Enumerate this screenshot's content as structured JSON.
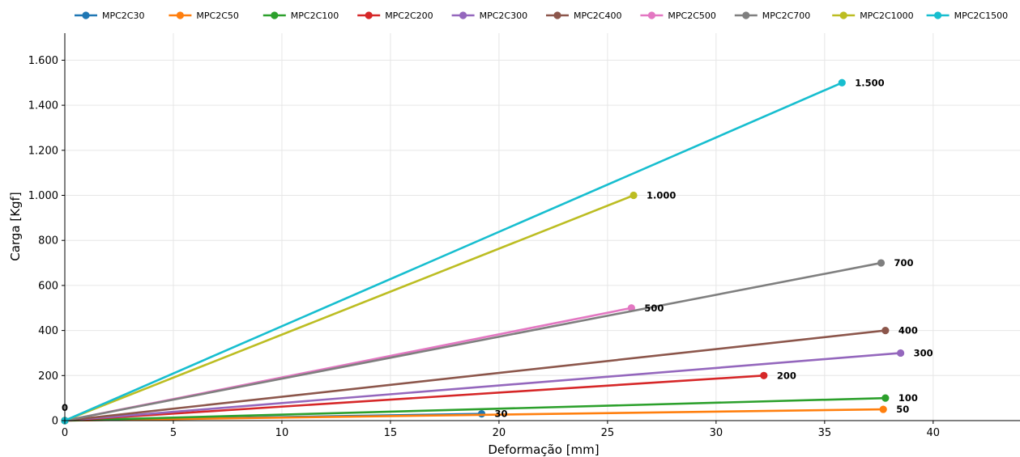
{
  "chart_data": {
    "type": "line",
    "xlabel": "Deformação [mm]",
    "ylabel": "Carga [Kgf]",
    "xlim": [
      0,
      44
    ],
    "ylim": [
      0,
      1720
    ],
    "xticks": [
      0,
      5,
      10,
      15,
      20,
      25,
      30,
      35,
      40
    ],
    "yticks": [
      0,
      200,
      400,
      600,
      800,
      1000,
      1200,
      1400,
      1600
    ],
    "ytick_labels": [
      "0",
      "200",
      "400",
      "600",
      "800",
      "1.000",
      "1.200",
      "1.400",
      "1.600"
    ],
    "grid": true,
    "legend_placement": "top",
    "origin_label": "0",
    "series": [
      {
        "name": "MPC2C30",
        "color": "#1f77b4",
        "x": [
          0,
          19.2
        ],
        "y": [
          0,
          30
        ],
        "end_label": "30"
      },
      {
        "name": "MPC2C50",
        "color": "#ff7f0e",
        "x": [
          0,
          37.7
        ],
        "y": [
          0,
          50
        ],
        "end_label": "50"
      },
      {
        "name": "MPC2C100",
        "color": "#2ca02c",
        "x": [
          0,
          37.8
        ],
        "y": [
          0,
          100
        ],
        "end_label": "100"
      },
      {
        "name": "MPC2C200",
        "color": "#d62728",
        "x": [
          0,
          32.2
        ],
        "y": [
          0,
          200
        ],
        "end_label": "200"
      },
      {
        "name": "MPC2C300",
        "color": "#9467bd",
        "x": [
          0,
          38.5
        ],
        "y": [
          0,
          300
        ],
        "end_label": "300"
      },
      {
        "name": "MPC2C400",
        "color": "#8c564b",
        "x": [
          0,
          37.8
        ],
        "y": [
          0,
          400
        ],
        "end_label": "400"
      },
      {
        "name": "MPC2C500",
        "color": "#e377c2",
        "x": [
          0,
          26.1
        ],
        "y": [
          0,
          500
        ],
        "end_label": "500"
      },
      {
        "name": "MPC2C700",
        "color": "#7f7f7f",
        "x": [
          0,
          37.6
        ],
        "y": [
          0,
          700
        ],
        "end_label": "700"
      },
      {
        "name": "MPC2C1000",
        "color": "#bcbd22",
        "x": [
          0,
          26.2
        ],
        "y": [
          0,
          1000
        ],
        "end_label": "1.000"
      },
      {
        "name": "MPC2C1500",
        "color": "#17becf",
        "x": [
          0,
          35.8
        ],
        "y": [
          0,
          1500
        ],
        "end_label": "1.500"
      }
    ]
  }
}
